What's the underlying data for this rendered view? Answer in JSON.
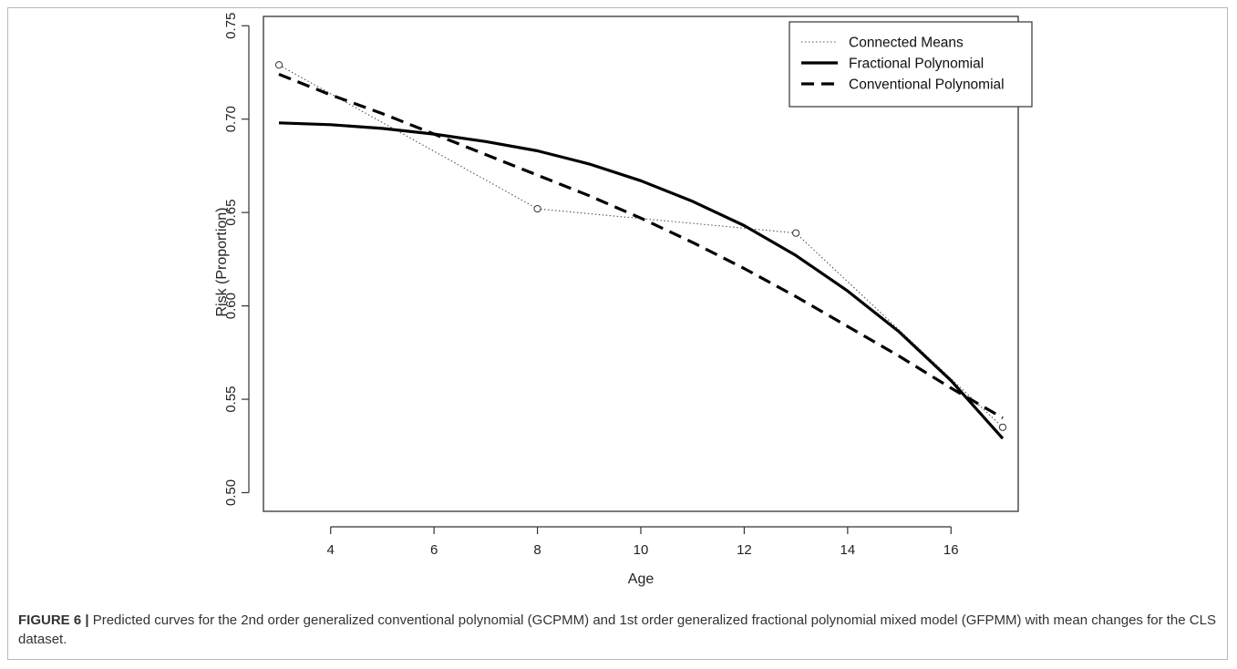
{
  "figure": {
    "caption_label": "FIGURE 6 |",
    "caption_text": " Predicted curves for the 2nd order generalized conventional polynomial (GCPMM) and 1st order generalized fractional polynomial mixed model (GFPMM) with mean changes for the CLS dataset."
  },
  "chart_data": {
    "type": "line",
    "xlabel": "Age",
    "ylabel": "Risk (Proportion)",
    "xlim": [
      2.7,
      17.3
    ],
    "ylim": [
      0.49,
      0.755
    ],
    "x_ticks": [
      4,
      6,
      8,
      10,
      12,
      14,
      16
    ],
    "y_ticks": [
      0.5,
      0.55,
      0.6,
      0.65,
      0.7,
      0.75
    ],
    "y_tick_labels": [
      "0.50",
      "0.55",
      "0.60",
      "0.65",
      "0.70",
      "0.75"
    ],
    "grid": false,
    "legend_position": "top-right",
    "series": [
      {
        "name": "Connected Means",
        "style": "dotted",
        "markers": true,
        "x": [
          3,
          8,
          13,
          17
        ],
        "y": [
          0.729,
          0.652,
          0.639,
          0.535
        ]
      },
      {
        "name": "Fractional Polynomial",
        "style": "solid",
        "markers": false,
        "x": [
          3,
          4,
          5,
          6,
          7,
          8,
          9,
          10,
          11,
          12,
          13,
          14,
          15,
          16,
          17
        ],
        "y": [
          0.698,
          0.697,
          0.695,
          0.692,
          0.688,
          0.683,
          0.676,
          0.667,
          0.656,
          0.643,
          0.627,
          0.608,
          0.586,
          0.56,
          0.529
        ]
      },
      {
        "name": "Conventional Polynomial",
        "style": "dashed",
        "markers": false,
        "x": [
          3,
          4,
          5,
          6,
          7,
          8,
          9,
          10,
          11,
          12,
          13,
          14,
          15,
          16,
          17
        ],
        "y": [
          0.724,
          0.713,
          0.703,
          0.692,
          0.681,
          0.67,
          0.659,
          0.647,
          0.634,
          0.62,
          0.605,
          0.589,
          0.573,
          0.556,
          0.54
        ]
      }
    ]
  }
}
